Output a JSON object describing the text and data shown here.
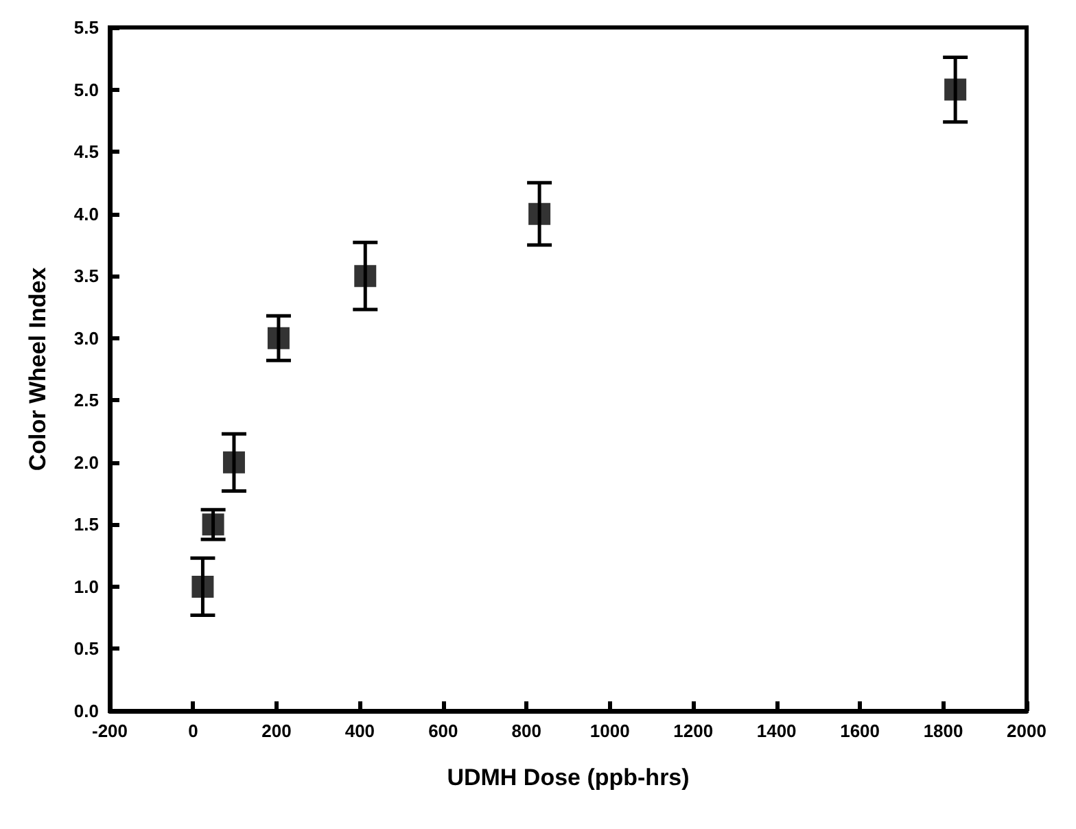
{
  "chart_data": {
    "type": "scatter",
    "xlabel": "UDMH Dose (ppb-hrs)",
    "ylabel": "Color Wheel Index",
    "x": [
      23,
      48,
      98,
      205,
      413,
      831,
      1829
    ],
    "values": [
      1.0,
      1.5,
      2.0,
      3.0,
      3.5,
      4.0,
      5.0
    ],
    "errors": [
      0.23,
      0.12,
      0.23,
      0.18,
      0.27,
      0.25,
      0.26
    ],
    "color": "#000000",
    "marker": "square",
    "xlim": [
      -200,
      2000
    ],
    "xticks": [
      -200,
      0,
      200,
      400,
      600,
      800,
      1000,
      1200,
      1400,
      1600,
      1800,
      2000
    ],
    "ylim": [
      0,
      5.5
    ],
    "yticks": [
      {
        "value": 0,
        "label": "0.0"
      },
      {
        "value": 0.5,
        "label": "0.5"
      },
      {
        "value": 1,
        "label": "1.0"
      },
      {
        "value": 1.5,
        "label": "1.5"
      },
      {
        "value": 2,
        "label": "2.0"
      },
      {
        "value": 2.5,
        "label": "2.5"
      },
      {
        "value": 3,
        "label": "3.0"
      },
      {
        "value": 3.5,
        "label": "3.5"
      },
      {
        "value": 4,
        "label": "4.0"
      },
      {
        "value": 4.5,
        "label": "4.5"
      },
      {
        "value": 5,
        "label": "5.0"
      },
      {
        "value": 5.5,
        "label": "5.5"
      }
    ],
    "grid": false
  }
}
